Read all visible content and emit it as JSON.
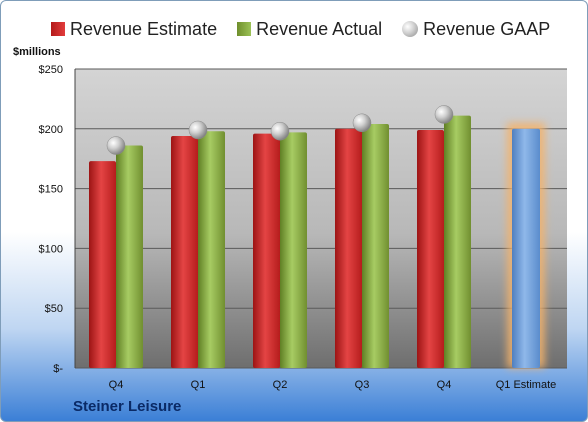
{
  "legend": {
    "estimate": "Revenue Estimate",
    "actual": "Revenue Actual",
    "gaap": "Revenue GAAP"
  },
  "unit_label": "$millions",
  "company": "Steiner Leisure",
  "colors": {
    "estimate": "#d42a2a",
    "actual": "#8db446",
    "gaap": "#b0b0b0",
    "forecast": "#6f9fd8",
    "forecast_glow": "#f4b26b"
  },
  "chart_data": {
    "type": "bar",
    "categories": [
      "Q4",
      "Q1",
      "Q2",
      "Q3",
      "Q4",
      "Q1 Estimate"
    ],
    "series": [
      {
        "name": "Revenue Estimate",
        "values": [
          173,
          194,
          196,
          200,
          199,
          null
        ]
      },
      {
        "name": "Revenue Actual",
        "values": [
          186,
          198,
          197,
          204,
          211,
          null
        ]
      },
      {
        "name": "Revenue GAAP",
        "type": "scatter",
        "values": [
          186,
          199,
          198,
          205,
          212,
          null
        ]
      }
    ],
    "forecast": {
      "category": "Q1 Estimate",
      "value": 200
    },
    "yticks": [
      "$-",
      "$50",
      "$100",
      "$150",
      "$200",
      "$250"
    ],
    "ylim": [
      0,
      250
    ],
    "grid": true,
    "legend_position": "top"
  }
}
